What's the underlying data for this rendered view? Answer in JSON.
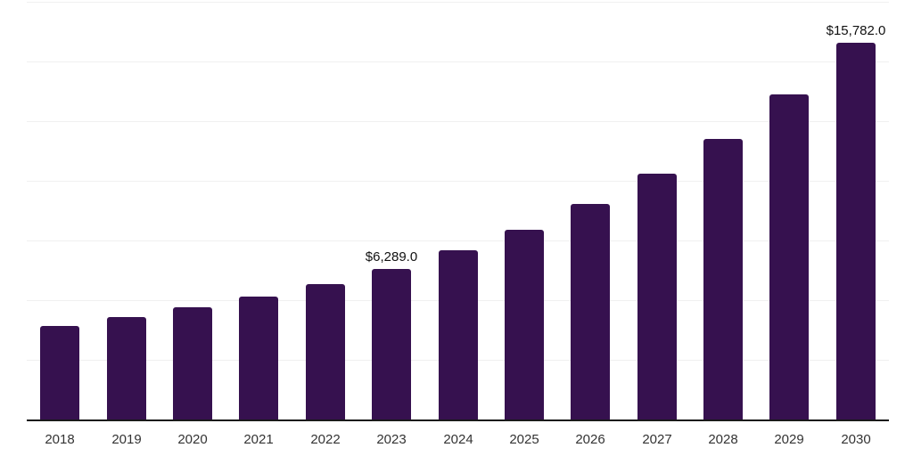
{
  "chart_data": {
    "type": "bar",
    "title": "",
    "xlabel": "",
    "ylabel": "",
    "categories": [
      "2018",
      "2019",
      "2020",
      "2021",
      "2022",
      "2023",
      "2024",
      "2025",
      "2026",
      "2027",
      "2028",
      "2029",
      "2030"
    ],
    "values": [
      3920,
      4290,
      4700,
      5150,
      5670,
      6289,
      7090,
      7940,
      9020,
      10310,
      11760,
      13630,
      15782
    ],
    "data_labels": {
      "2023": "$6,289.0",
      "2030": "$15,782.0"
    },
    "ylim": [
      0,
      17500
    ],
    "grid_step": 2500,
    "grid": "horizontal-only",
    "legend_position": "none",
    "yaxis_tick_labels": "none",
    "bar_color": "#36114F",
    "axis_color": "#1a1a1a",
    "gridline_color": "#f0f0f0",
    "xlabel_color": "#333333",
    "data_label_color": "#111111"
  }
}
